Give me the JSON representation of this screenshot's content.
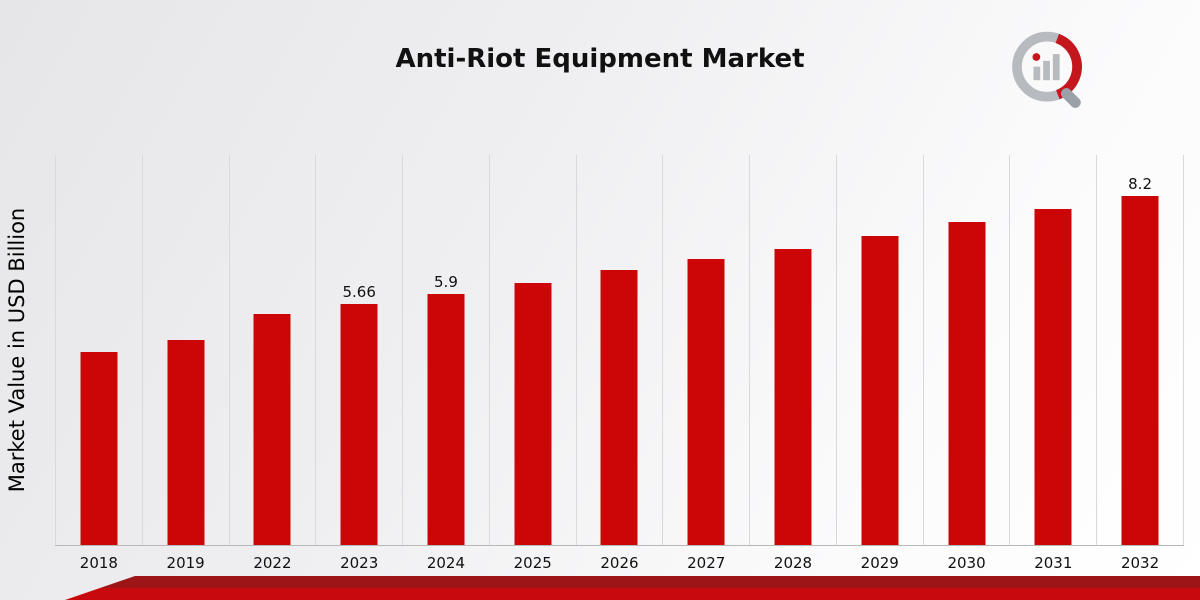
{
  "chart_data": {
    "type": "bar",
    "title": "Anti-Riot Equipment Market",
    "xlabel": "",
    "ylabel": "Market Value in USD Billion",
    "categories": [
      "2018",
      "2019",
      "2022",
      "2023",
      "2024",
      "2025",
      "2026",
      "2027",
      "2028",
      "2029",
      "2030",
      "2031",
      "2032"
    ],
    "values": [
      4.52,
      4.8,
      5.43,
      5.66,
      5.9,
      6.15,
      6.46,
      6.72,
      6.94,
      7.26,
      7.57,
      7.89,
      8.2
    ],
    "bar_labels": [
      "",
      "",
      "",
      "5.66",
      "5.9",
      "",
      "",
      "",
      "",
      "",
      "",
      "",
      "8.2"
    ],
    "ylim": [
      0,
      9.15
    ],
    "grid": "vertical",
    "legend": "none",
    "bar_color": "#CC0606"
  },
  "branding": {
    "logo_name": "market-research-future-logo",
    "ribbon_colors": [
      "#9E1518",
      "#C8090E"
    ],
    "logo_gray": "#b7babf",
    "logo_red": "#c4161c",
    "logo_handle": "#9ba1a8"
  }
}
